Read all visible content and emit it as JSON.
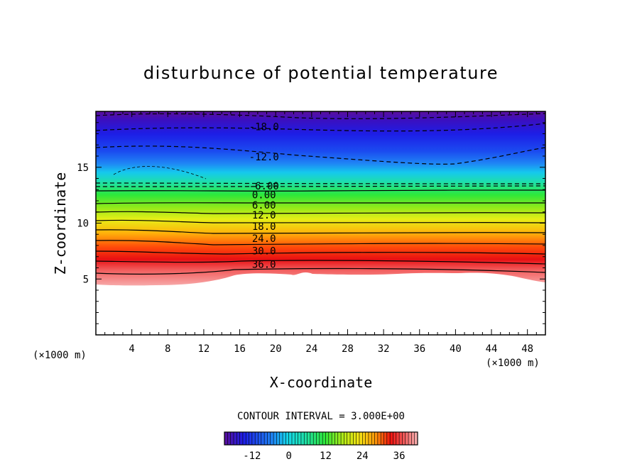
{
  "chart_data": {
    "type": "contour",
    "title": "disturbunce of potential temperature",
    "xlabel": "X-coordinate",
    "ylabel": "Z-coordinate",
    "x_unit": "(×1000 m)",
    "z_unit": "(×1000 m)",
    "xlim": [
      0,
      50
    ],
    "ylim": [
      0,
      20
    ],
    "x_ticks": [
      4,
      8,
      12,
      16,
      20,
      24,
      28,
      32,
      36,
      40,
      44,
      48
    ],
    "y_ticks": [
      5,
      10,
      15
    ],
    "contour_interval_text": "CONTOUR INTERVAL = 3.000E+00",
    "contour_labels": [
      {
        "text": "-18.0",
        "x": 18.7,
        "z": 18.5
      },
      {
        "text": "-12.0",
        "x": 18.7,
        "z": 15.8
      },
      {
        "text": "-6.00",
        "x": 18.7,
        "z": 13.2
      },
      {
        "text": "0.00",
        "x": 18.7,
        "z": 12.4
      },
      {
        "text": "6.00",
        "x": 18.7,
        "z": 11.5
      },
      {
        "text": "12.0",
        "x": 18.7,
        "z": 10.6
      },
      {
        "text": "18.0",
        "x": 18.7,
        "z": 9.6
      },
      {
        "text": "24.0",
        "x": 18.7,
        "z": 8.5
      },
      {
        "text": "30.0",
        "x": 18.7,
        "z": 7.4
      },
      {
        "text": "36.0",
        "x": 18.7,
        "z": 6.2
      }
    ],
    "colorbar": {
      "ticks": [
        "-12",
        "0",
        "12",
        "24",
        "36"
      ],
      "tick_values": [
        -12,
        0,
        12,
        24,
        36
      ],
      "range": [
        -21,
        42
      ]
    }
  }
}
